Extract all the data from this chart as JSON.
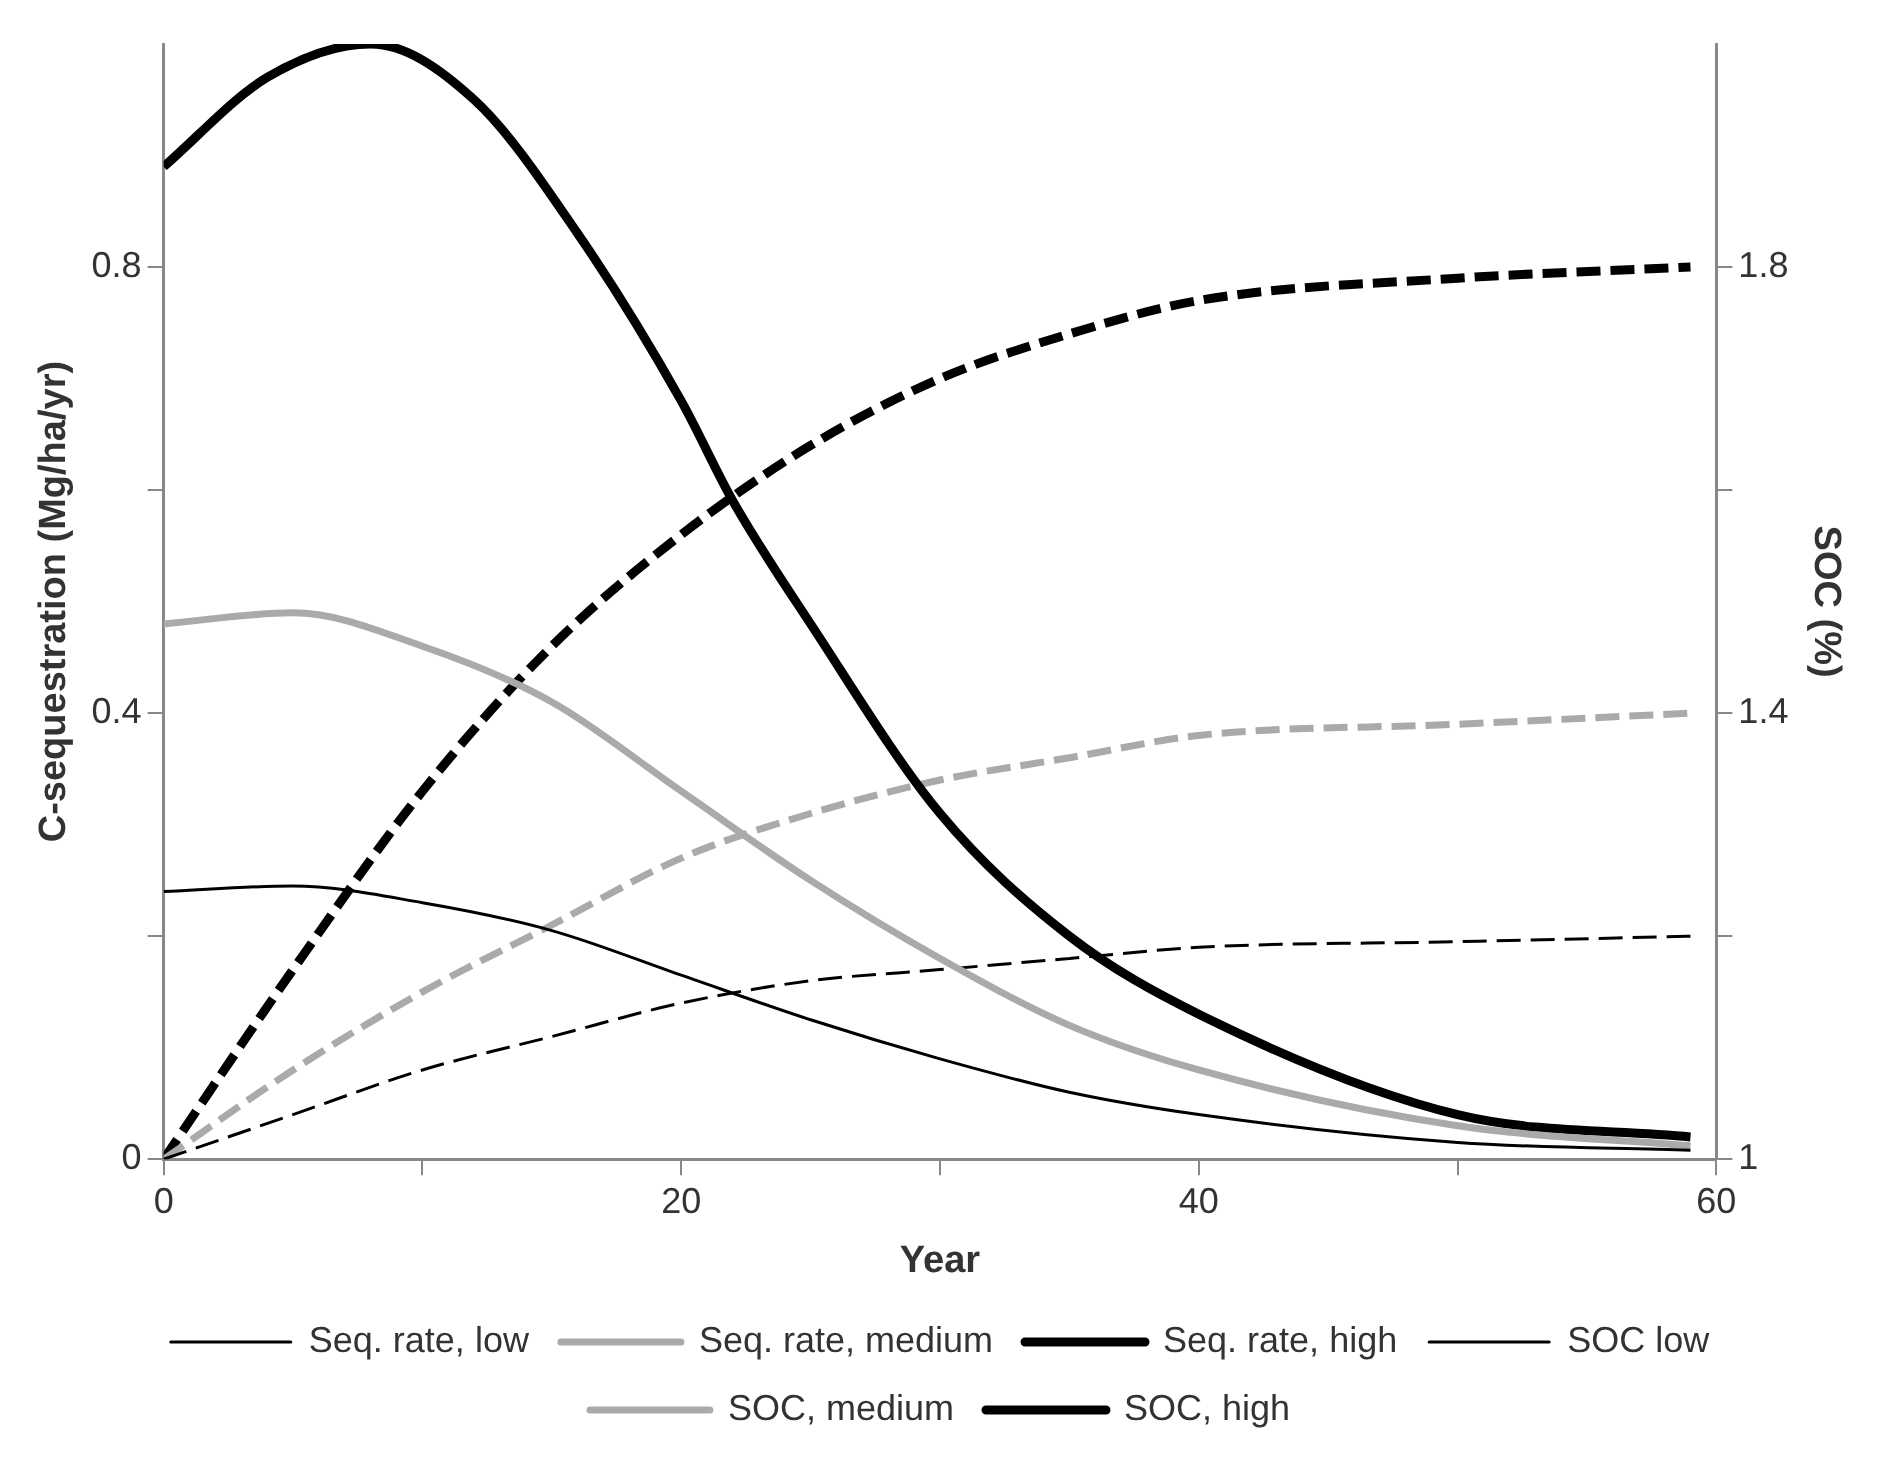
{
  "chart_data": {
    "type": "line",
    "xlabel": "Year",
    "ylabel": "C-sequestration (Mg/ha/yr)",
    "y2label": "SOC (%)",
    "xlim": [
      0,
      60
    ],
    "xticks": [
      0,
      {
        "value": 10,
        "label": null
      },
      20,
      {
        "value": 30,
        "label": null
      },
      40,
      {
        "value": 50,
        "label": null
      },
      60
    ],
    "ylim": [
      0,
      1
    ],
    "yticks": [
      0,
      {
        "value": 0.2,
        "label": null
      },
      0.4,
      {
        "value": 0.6,
        "label": null
      },
      0.8
    ],
    "y2lim": [
      1,
      2
    ],
    "y2ticks": [
      1,
      {
        "value": 1.2,
        "label": null
      },
      1.4,
      {
        "value": 1.6,
        "label": null
      },
      1.8
    ],
    "x": [
      0,
      5,
      10,
      15,
      20,
      25,
      30,
      35,
      40,
      50,
      59
    ],
    "grid": false,
    "legend": "bottom",
    "marker": "none",
    "series": [
      {
        "name": "Seq. rate, low",
        "color": "#000000",
        "line_style": "solid",
        "values": [
          0.24,
          0.245,
          0.23,
          0.205,
          0.165,
          0.125,
          0.09,
          0.06,
          0.04,
          0.015,
          0.008
        ]
      },
      {
        "name": "Seq. rate, medium",
        "color": "#aaaaaa",
        "line_style": "solid",
        "values": [
          0.48,
          0.49,
          0.46,
          0.41,
          0.33,
          0.25,
          0.18,
          0.12,
          0.08,
          0.03,
          0.012
        ]
      },
      {
        "name": "Seq. rate, high",
        "color": "#000000",
        "line_style": "solid",
        "x": [
          0,
          4,
          8,
          12,
          16,
          20,
          22,
          25,
          30,
          35,
          40,
          50,
          59
        ],
        "values": [
          0.89,
          0.97,
          1.0,
          0.95,
          0.83,
          0.68,
          0.59,
          0.48,
          0.31,
          0.2,
          0.13,
          0.04,
          0.02
        ]
      },
      {
        "name": "SOC low",
        "color": "#000000",
        "line_style": "dashed",
        "axis": "y2",
        "values": [
          1.0,
          1.04,
          1.08,
          1.11,
          1.14,
          1.16,
          1.17,
          1.18,
          1.19,
          1.195,
          1.2
        ]
      },
      {
        "name": "SOC, medium",
        "color": "#aaaaaa",
        "line_style": "dashed",
        "axis": "y2",
        "values": [
          1.0,
          1.08,
          1.15,
          1.21,
          1.27,
          1.31,
          1.34,
          1.36,
          1.38,
          1.39,
          1.4
        ]
      },
      {
        "name": "SOC, high",
        "color": "#000000",
        "line_style": "dashed",
        "axis": "y2",
        "values": [
          1.0,
          1.17,
          1.33,
          1.46,
          1.56,
          1.64,
          1.7,
          1.74,
          1.77,
          1.79,
          1.8
        ]
      }
    ]
  }
}
